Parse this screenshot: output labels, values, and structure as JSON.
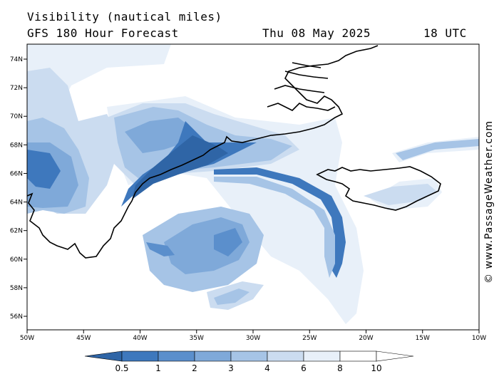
{
  "header": {
    "title": "Visibility (nautical miles)",
    "subtitle": "GFS 180 Hour Forecast",
    "date": "Thu 08 May 2025",
    "time": "18 UTC"
  },
  "credit": "© www.PassageWeather.com",
  "map": {
    "lon_labels": [
      "50W",
      "45W",
      "40W",
      "35W",
      "30W",
      "25W",
      "20W",
      "15W",
      "10W"
    ],
    "lat_labels": [
      "74N",
      "72N",
      "70N",
      "68N",
      "66N",
      "64N",
      "62N",
      "60N",
      "58N",
      "56N"
    ],
    "colors": {
      "level_0_5": "#2f65a6",
      "level_1": "#3e78bd",
      "level_2": "#5b8fcc",
      "level_3": "#7fa9d9",
      "level_4": "#a6c4e6",
      "level_6": "#cbdcf0",
      "level_8": "#e8f0f9",
      "coast": "#000000"
    }
  },
  "legend": {
    "labels": [
      "0.5",
      "1",
      "2",
      "3",
      "4",
      "6",
      "8",
      "10"
    ]
  }
}
